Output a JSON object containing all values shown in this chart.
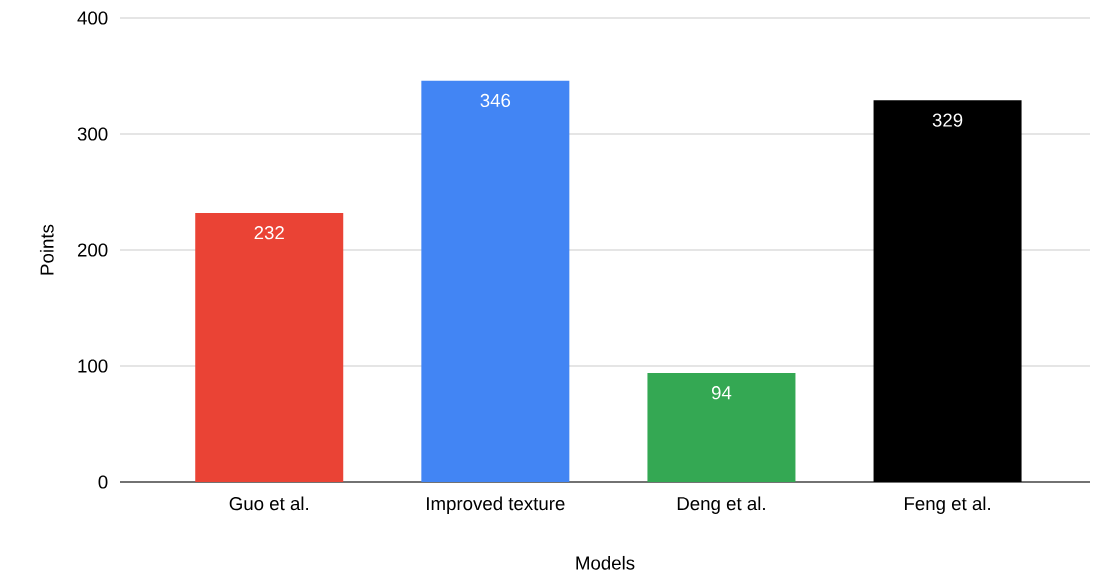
{
  "chart_data": {
    "type": "bar",
    "xlabel": "Models",
    "ylabel": "Points",
    "categories": [
      "Guo et al.",
      "Improved texture",
      "Deng et al.",
      "Feng et al."
    ],
    "values": [
      232,
      346,
      94,
      329
    ],
    "colors": [
      "#ea4335",
      "#4285f4",
      "#34a853",
      "#000000"
    ],
    "ylim": [
      0,
      400
    ],
    "yticks": [
      0,
      100,
      200,
      300,
      400
    ],
    "grid": "y",
    "data_labels": true
  }
}
